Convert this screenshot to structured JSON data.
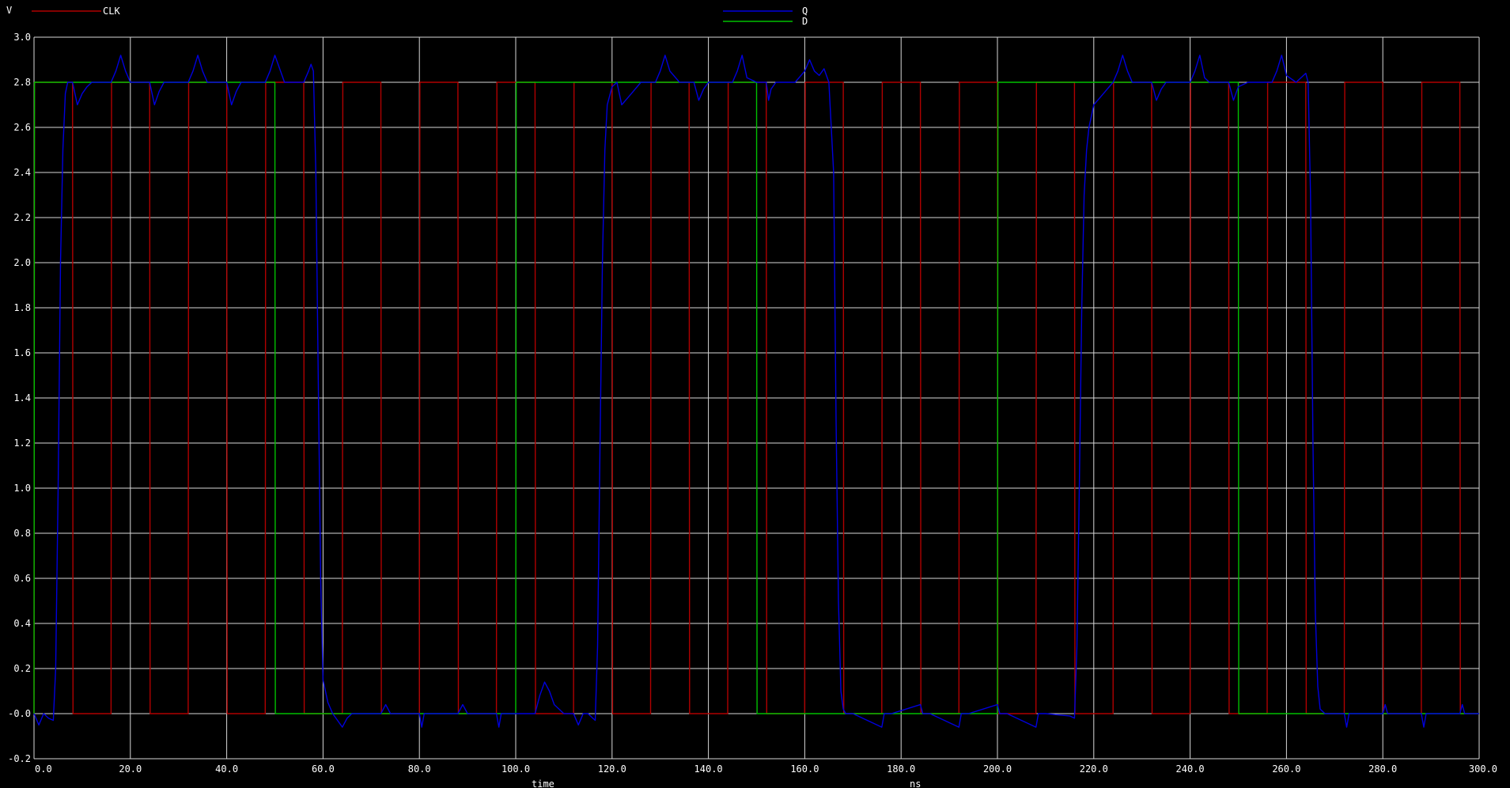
{
  "chart_data": {
    "type": "line",
    "title": "",
    "ylabel": "V",
    "xlabel": "time",
    "xunit": "ns",
    "xlim": [
      0,
      300
    ],
    "ylim": [
      -0.2,
      3.0
    ],
    "xticks": [
      0,
      20,
      40,
      60,
      80,
      100,
      120,
      140,
      160,
      180,
      200,
      220,
      240,
      260,
      280,
      300
    ],
    "xtick_labels": [
      "0.0",
      "20.0",
      "40.0",
      "60.0",
      "80.0",
      "100.0",
      "120.0",
      "140.0",
      "160.0",
      "180.0",
      "200.0",
      "220.0",
      "240.0",
      "260.0",
      "280.0",
      "300.0"
    ],
    "yticks": [
      -0.2,
      0,
      0.2,
      0.4,
      0.6,
      0.8,
      1.0,
      1.2,
      1.4,
      1.6,
      1.8,
      2.0,
      2.2,
      2.4,
      2.6,
      2.8,
      3.0
    ],
    "ytick_labels": [
      "-0.2",
      "-0.0",
      "0.2",
      "0.4",
      "0.6",
      "0.8",
      "1.0",
      "1.2",
      "1.4",
      "1.6",
      "1.8",
      "2.0",
      "2.2",
      "2.4",
      "2.6",
      "2.8",
      "3.0"
    ],
    "grid": true,
    "legend_position": "top",
    "series": [
      {
        "name": "CLK",
        "color": "#b00000",
        "x": [
          0,
          0.1,
          8,
          8.1,
          16,
          16.1,
          24,
          24.1,
          32,
          32.1,
          40,
          40.1,
          48,
          48.1,
          56,
          56.1,
          64,
          64.1,
          72,
          72.1,
          80,
          80.1,
          88,
          88.1,
          96,
          96.1,
          104,
          104.1,
          112,
          112.1,
          120,
          120.1,
          128,
          128.1,
          136,
          136.1,
          144,
          144.1,
          152,
          152.1,
          160,
          160.1,
          168,
          168.1,
          176,
          176.1,
          184,
          184.1,
          192,
          192.1,
          200,
          200.1,
          208,
          208.1,
          216,
          216.1,
          224,
          224.1,
          232,
          232.1,
          240,
          240.1,
          248,
          248.1,
          256,
          256.1,
          264,
          264.1,
          272,
          272.1,
          280,
          280.1,
          288,
          288.1,
          296,
          296.1,
          300
        ],
        "values": [
          0,
          2.8,
          2.8,
          0,
          0,
          2.8,
          2.8,
          0,
          0,
          2.8,
          2.8,
          0,
          0,
          2.8,
          2.8,
          0,
          0,
          2.8,
          2.8,
          0,
          0,
          2.8,
          2.8,
          0,
          0,
          2.8,
          2.8,
          0,
          0,
          2.8,
          2.8,
          0,
          0,
          2.8,
          2.8,
          0,
          0,
          2.8,
          2.8,
          0,
          0,
          2.8,
          2.8,
          0,
          0,
          2.8,
          2.8,
          0,
          0,
          2.8,
          2.8,
          0,
          0,
          2.8,
          2.8,
          0,
          0,
          2.8,
          2.8,
          0,
          0,
          2.8,
          2.8,
          0,
          0,
          2.8,
          2.8,
          0,
          0,
          2.8,
          2.8,
          0,
          0,
          2.8,
          2.8,
          0,
          0
        ]
      },
      {
        "name": "Q",
        "color": "#0000dd",
        "x": [
          0,
          1,
          2,
          3,
          4,
          4.5,
          5,
          5.5,
          6,
          6.5,
          7,
          8,
          9,
          10,
          11,
          12,
          14,
          16,
          17,
          18,
          19,
          20,
          22,
          24,
          25,
          26,
          27,
          28,
          30,
          32,
          33,
          34,
          35,
          36,
          38,
          40,
          41,
          42,
          43,
          44,
          46,
          48,
          49,
          50,
          52,
          54,
          56,
          57,
          57.5,
          58,
          58.5,
          59,
          59.5,
          60,
          61,
          62,
          63,
          64,
          65,
          66,
          68,
          70,
          72,
          73,
          74,
          76,
          80,
          80.5,
          81,
          82,
          88,
          89,
          90,
          96,
          96.5,
          97,
          98,
          100,
          102,
          104,
          105,
          106,
          107,
          108,
          110,
          112,
          113,
          114,
          115,
          116,
          116.5,
          117,
          117.5,
          118,
          118.5,
          119,
          120,
          121,
          122,
          124,
          126,
          128,
          129,
          130,
          131,
          132,
          134,
          136,
          137,
          138,
          139,
          140,
          142,
          144,
          145,
          146,
          147,
          148,
          150,
          152,
          152.5,
          153,
          154,
          156,
          158,
          160,
          161,
          162,
          163,
          164,
          165,
          166,
          166.5,
          167,
          167.5,
          168,
          168.5,
          169,
          170,
          176,
          176.5,
          177,
          178,
          184,
          184.5,
          185,
          186,
          192,
          192.5,
          193,
          194,
          200,
          200.5,
          201,
          202,
          208,
          208.5,
          209,
          210,
          215,
          216,
          216.5,
          217,
          217.5,
          218,
          218.5,
          219,
          219.5,
          220,
          222,
          224,
          225,
          226,
          227,
          228,
          232,
          233,
          234,
          235,
          236,
          240,
          241,
          242,
          243,
          244,
          248,
          249,
          250,
          252,
          256,
          257,
          258,
          259,
          260,
          262,
          264,
          264.5,
          265,
          265.5,
          266,
          266.5,
          267,
          268,
          270,
          272,
          272.5,
          273,
          274,
          280,
          280.5,
          281,
          282,
          288,
          288.5,
          289,
          290,
          296,
          296.5,
          297,
          298,
          300
        ],
        "values": [
          0,
          -0.05,
          0,
          -0.02,
          -0.03,
          0.2,
          1.0,
          2.0,
          2.5,
          2.75,
          2.8,
          2.8,
          2.7,
          2.75,
          2.78,
          2.8,
          2.8,
          2.8,
          2.85,
          2.92,
          2.85,
          2.8,
          2.8,
          2.8,
          2.7,
          2.76,
          2.8,
          2.8,
          2.8,
          2.8,
          2.85,
          2.92,
          2.85,
          2.8,
          2.8,
          2.8,
          2.7,
          2.76,
          2.8,
          2.8,
          2.8,
          2.8,
          2.85,
          2.92,
          2.8,
          2.8,
          2.8,
          2.85,
          2.88,
          2.85,
          2.4,
          1.5,
          0.6,
          0.15,
          0.05,
          0,
          -0.03,
          -0.06,
          -0.02,
          0,
          0,
          0,
          0,
          0.04,
          0,
          0,
          0,
          -0.06,
          0,
          0,
          0,
          0.04,
          0,
          0,
          -0.06,
          0,
          0,
          0,
          0,
          0,
          0.08,
          0.14,
          0.1,
          0.04,
          0,
          0,
          -0.05,
          0,
          0,
          -0.02,
          -0.03,
          0.3,
          1.2,
          2.0,
          2.5,
          2.7,
          2.78,
          2.8,
          2.7,
          2.75,
          2.8,
          2.8,
          2.8,
          2.85,
          2.92,
          2.85,
          2.8,
          2.8,
          2.8,
          2.72,
          2.77,
          2.8,
          2.8,
          2.8,
          2.8,
          2.85,
          2.92,
          2.82,
          2.8,
          2.8,
          2.72,
          2.77,
          2.8,
          2.8,
          2.8,
          2.85,
          2.9,
          2.85,
          2.83,
          2.86,
          2.8,
          2.4,
          1.3,
          0.5,
          0.1,
          0.02,
          0,
          0,
          0,
          -0.06,
          0,
          0,
          0,
          0.04,
          0,
          0,
          0,
          -0.06,
          0,
          0,
          0,
          0.04,
          0,
          0,
          0,
          -0.06,
          0,
          0,
          0,
          -0.01,
          -0.02,
          0.3,
          1.0,
          1.8,
          2.3,
          2.5,
          2.6,
          2.65,
          2.7,
          2.75,
          2.8,
          2.85,
          2.92,
          2.85,
          2.8,
          2.8,
          2.72,
          2.77,
          2.8,
          2.8,
          2.8,
          2.85,
          2.92,
          2.82,
          2.8,
          2.8,
          2.72,
          2.78,
          2.8,
          2.8,
          2.8,
          2.85,
          2.92,
          2.83,
          2.8,
          2.84,
          2.8,
          2.3,
          1.2,
          0.45,
          0.12,
          0.02,
          0,
          0,
          0,
          -0.06,
          0,
          0,
          0,
          0.04,
          0,
          0,
          0,
          -0.06,
          0,
          0,
          0,
          0.04,
          0,
          0,
          0
        ]
      },
      {
        "name": "D",
        "color": "#00c000",
        "x": [
          0,
          0.1,
          50,
          50.1,
          100,
          100.1,
          150,
          150.1,
          200,
          200.1,
          250,
          250.1,
          300
        ],
        "values": [
          0,
          2.8,
          2.8,
          0,
          0,
          2.8,
          2.8,
          0,
          0,
          2.8,
          2.8,
          0,
          0
        ]
      }
    ]
  }
}
